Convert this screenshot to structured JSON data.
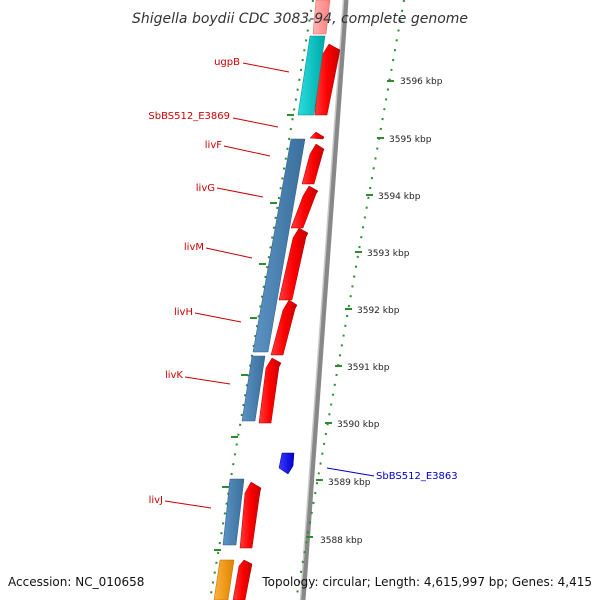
{
  "title": "Shigella boydii CDC 3083-94, complete genome",
  "footer": {
    "accession": "Accession: NC_010658",
    "topology": "Topology: circular; Length: 4,615,997 bp; Genes: 4,415"
  },
  "colors": {
    "label_red": "#cc0000",
    "label_blue": "#0000cc",
    "tick_green": "#2e8b2e",
    "backbone_gray": "#888888",
    "gene_red": "#ff0000",
    "gene_cyan": "#00cccc",
    "gene_steelblue": "#4682b4",
    "gene_blue": "#0000ff",
    "gene_orange": "#ff9900",
    "gene_pink": "#ff9999"
  },
  "gene_labels": [
    {
      "text": "ugpB"
    },
    {
      "text": "SbBS512_E3869"
    },
    {
      "text": "livF"
    },
    {
      "text": "livG"
    },
    {
      "text": "livM"
    },
    {
      "text": "livH"
    },
    {
      "text": "livK"
    },
    {
      "text": "livJ"
    },
    {
      "text": "SbBS512_E3863"
    }
  ],
  "scale_ticks": [
    {
      "label": "3596 kbp"
    },
    {
      "label": "3595 kbp"
    },
    {
      "label": "3594 kbp"
    },
    {
      "label": "3593 kbp"
    },
    {
      "label": "3592 kbp"
    },
    {
      "label": "3591 kbp"
    },
    {
      "label": "3590 kbp"
    },
    {
      "label": "3589 kbp"
    },
    {
      "label": "3588 kbp"
    }
  ]
}
